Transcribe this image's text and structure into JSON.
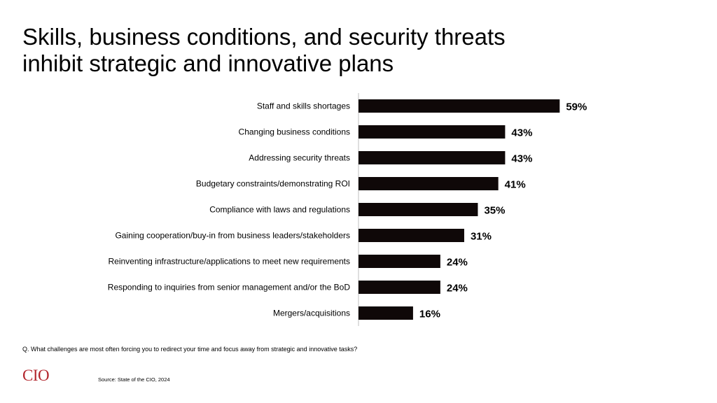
{
  "title_lines": [
    "Skills, business conditions, and security threats",
    "inhibit strategic and innovative plans"
  ],
  "question": "Q. What challenges are most often forcing you to redirect your time and focus away from strategic and innovative tasks?",
  "logo_text": "CIO",
  "logo_color": "#b3272e",
  "source": "Source: State of the CIO, 2024",
  "bar_color": "#0f0808",
  "chart_data": {
    "type": "bar",
    "orientation": "horizontal",
    "title": "Skills, business conditions, and security threats inhibit strategic and innovative plans",
    "categories": [
      "Staff and skills shortages",
      "Changing business conditions",
      "Addressing security threats",
      "Budgetary constraints/demonstrating ROI",
      "Compliance with laws and regulations",
      "Gaining cooperation/buy-in from business leaders/stakeholders",
      "Reinventing infrastructure/applications to meet new requirements",
      "Responding to inquiries from senior management and/or the BoD",
      "Mergers/acquisitions"
    ],
    "values": [
      59,
      43,
      43,
      41,
      35,
      31,
      24,
      24,
      16
    ],
    "value_labels": [
      "59%",
      "43%",
      "43%",
      "41%",
      "35%",
      "31%",
      "24%",
      "24%",
      "16%"
    ],
    "xlim": [
      0,
      100
    ],
    "grid": false,
    "legend": "none"
  }
}
